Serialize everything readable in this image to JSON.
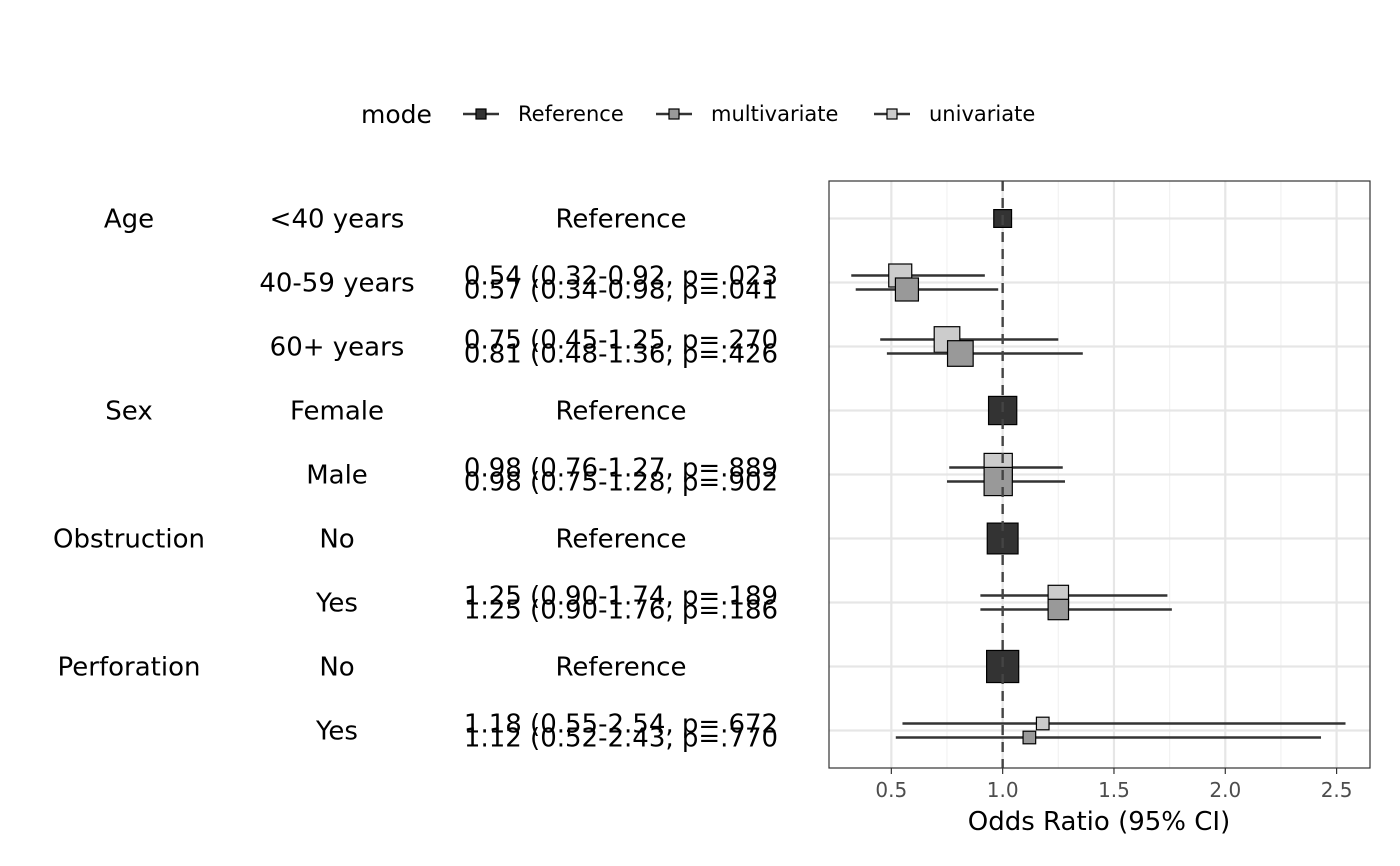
{
  "chart_data": {
    "type": "forest",
    "xlabel": "Odds Ratio (95% CI)",
    "xlim": [
      0.22,
      2.65
    ],
    "x_ticks": [
      "0.5",
      "1.0",
      "1.5",
      "2.0",
      "2.5"
    ],
    "x_tick_values": [
      0.5,
      1.0,
      1.5,
      2.0,
      2.5
    ],
    "reference_line": 1.0,
    "grid": true,
    "legend": {
      "title": "mode",
      "position": "top",
      "entries": [
        {
          "name": "Reference",
          "color": "#333333"
        },
        {
          "name": "multivariate",
          "color": "#999999"
        },
        {
          "name": "univariate",
          "color": "#cccccc"
        }
      ]
    },
    "rows": [
      {
        "variable": "Age",
        "level": "<40 years",
        "labels": [
          "Reference"
        ],
        "points": [
          {
            "mode": "Reference",
            "or": 1.0,
            "lo": 1.0,
            "hi": 1.0,
            "weight": 0.3
          }
        ]
      },
      {
        "variable": "",
        "level": "40-59 years",
        "labels": [
          "0.54 (0.32-0.92, p=.023",
          "0.57 (0.34-0.98, p=.041"
        ],
        "points": [
          {
            "mode": "univariate",
            "or": 0.54,
            "lo": 0.32,
            "hi": 0.92,
            "weight": 0.5
          },
          {
            "mode": "multivariate",
            "or": 0.57,
            "lo": 0.34,
            "hi": 0.98,
            "weight": 0.5
          }
        ]
      },
      {
        "variable": "",
        "level": "60+ years",
        "labels": [
          "0.75 (0.45-1.25, p=.270",
          "0.81 (0.48-1.36, p=.426"
        ],
        "points": [
          {
            "mode": "univariate",
            "or": 0.75,
            "lo": 0.45,
            "hi": 1.25,
            "weight": 0.6
          },
          {
            "mode": "multivariate",
            "or": 0.81,
            "lo": 0.48,
            "hi": 1.36,
            "weight": 0.6
          }
        ]
      },
      {
        "variable": "Sex",
        "level": "Female",
        "labels": [
          "Reference"
        ],
        "points": [
          {
            "mode": "Reference",
            "or": 1.0,
            "lo": 1.0,
            "hi": 1.0,
            "weight": 0.7
          }
        ]
      },
      {
        "variable": "",
        "level": "Male",
        "labels": [
          "0.98 (0.76-1.27, p=.889",
          "0.98 (0.75-1.28, p=.902"
        ],
        "points": [
          {
            "mode": "univariate",
            "or": 0.98,
            "lo": 0.76,
            "hi": 1.27,
            "weight": 0.7
          },
          {
            "mode": "multivariate",
            "or": 0.98,
            "lo": 0.75,
            "hi": 1.28,
            "weight": 0.7
          }
        ]
      },
      {
        "variable": "Obstruction",
        "level": "No",
        "labels": [
          "Reference"
        ],
        "points": [
          {
            "mode": "Reference",
            "or": 1.0,
            "lo": 1.0,
            "hi": 1.0,
            "weight": 0.8
          }
        ]
      },
      {
        "variable": "",
        "level": "Yes",
        "labels": [
          "1.25 (0.90-1.74, p=.189",
          "1.25 (0.90-1.76, p=.186"
        ],
        "points": [
          {
            "mode": "univariate",
            "or": 1.25,
            "lo": 0.9,
            "hi": 1.74,
            "weight": 0.4
          },
          {
            "mode": "multivariate",
            "or": 1.25,
            "lo": 0.9,
            "hi": 1.76,
            "weight": 0.4
          }
        ]
      },
      {
        "variable": "Perforation",
        "level": "No",
        "labels": [
          "Reference"
        ],
        "points": [
          {
            "mode": "Reference",
            "or": 1.0,
            "lo": 1.0,
            "hi": 1.0,
            "weight": 0.85
          }
        ]
      },
      {
        "variable": "",
        "level": "Yes",
        "labels": [
          "1.18 (0.55-2.54, p=.672",
          "1.12 (0.52-2.43, p=.770"
        ],
        "points": [
          {
            "mode": "univariate",
            "or": 1.18,
            "lo": 0.55,
            "hi": 2.54,
            "weight": 0.1
          },
          {
            "mode": "multivariate",
            "or": 1.12,
            "lo": 0.52,
            "hi": 2.43,
            "weight": 0.1
          }
        ]
      }
    ]
  }
}
